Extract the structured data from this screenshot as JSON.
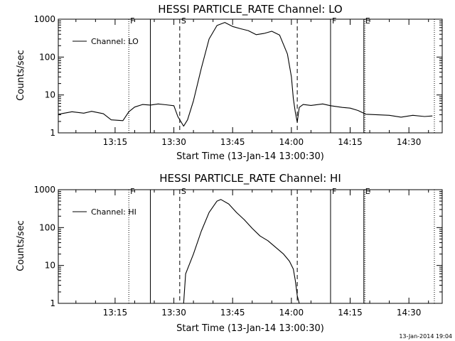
{
  "chart_data": [
    {
      "type": "line",
      "title": "HESSI PARTICLE_RATE Channel: LO",
      "xlabel": "Start Time (13-Jan-14 13:00:30)",
      "ylabel": "Counts/sec",
      "yscale": "log",
      "ylim": [
        1,
        1000
      ],
      "xlim": [
        "13:00:30",
        "14:38:30"
      ],
      "xticks": [
        "13:15",
        "13:30",
        "13:45",
        "14:00",
        "14:15",
        "14:30"
      ],
      "yticks": [
        "1",
        "10",
        "100",
        "1000"
      ],
      "legend": "top-left",
      "grid": false,
      "series": [
        {
          "name": "Channel: LO",
          "x": [
            "13:00:30",
            "13:04:00",
            "13:07:00",
            "13:09:00",
            "13:12:00",
            "13:14:00",
            "13:17:00",
            "13:18:30",
            "13:20:00",
            "13:22:00",
            "13:24:00",
            "13:26:00",
            "13:28:00",
            "13:30:00",
            "13:31:00",
            "13:32:30",
            "13:33:30",
            "13:35:00",
            "13:37:00",
            "13:39:00",
            "13:41:00",
            "13:43:00",
            "13:45:00",
            "13:47:00",
            "13:49:00",
            "13:51:00",
            "13:53:00",
            "13:55:00",
            "13:57:00",
            "13:59:00",
            "14:00:00",
            "14:00:30",
            "14:01:00",
            "14:01:30",
            "14:02:00",
            "14:03:00",
            "14:05:00",
            "14:08:00",
            "14:10:00",
            "14:13:00",
            "14:15:00",
            "14:17:00",
            "14:19:00",
            "14:22:00",
            "14:25:00",
            "14:28:00",
            "14:31:00",
            "14:34:00",
            "14:36:00"
          ],
          "values": [
            3.1,
            3.6,
            3.3,
            3.7,
            3.2,
            2.2,
            2.1,
            3.6,
            4.8,
            5.6,
            5.4,
            5.8,
            5.5,
            5.2,
            2.7,
            1.5,
            2.2,
            7,
            50,
            300,
            680,
            820,
            640,
            560,
            500,
            390,
            420,
            480,
            380,
            120,
            30,
            8,
            3.5,
            1.9,
            4.7,
            5.6,
            5.3,
            5.8,
            5.2,
            4.7,
            4.5,
            3.9,
            3.1,
            3.0,
            2.9,
            2.6,
            2.9,
            2.7,
            2.8
          ],
          "color": "#000000"
        }
      ],
      "markers": [
        {
          "label": "F",
          "x": "13:18:30",
          "style": "dotted"
        },
        {
          "label": "",
          "x": "13:24:00",
          "style": "solid"
        },
        {
          "label": "S",
          "x": "13:31:30",
          "style": "dashed"
        },
        {
          "label": "",
          "x": "14:01:30",
          "style": "dashed"
        },
        {
          "label": "F",
          "x": "14:10:00",
          "style": "solid"
        },
        {
          "label": "E",
          "x": "14:18:30",
          "style": "solid"
        },
        {
          "label": "",
          "x": "14:18:45",
          "style": "dotted"
        },
        {
          "label": "",
          "x": "14:36:30",
          "style": "dotted"
        }
      ]
    },
    {
      "type": "line",
      "title": "HESSI PARTICLE_RATE Channel: HI",
      "xlabel": "Start Time (13-Jan-14 13:00:30)",
      "ylabel": "Counts/sec",
      "yscale": "log",
      "ylim": [
        1,
        1000
      ],
      "xlim": [
        "13:00:30",
        "14:38:30"
      ],
      "xticks": [
        "13:15",
        "13:30",
        "13:45",
        "14:00",
        "14:15",
        "14:30"
      ],
      "yticks": [
        "1",
        "10",
        "100",
        "1000"
      ],
      "legend": "top-left",
      "grid": false,
      "series": [
        {
          "name": "Channel: HI",
          "x": [
            "13:32:30",
            "13:33:00",
            "13:35:00",
            "13:37:00",
            "13:39:00",
            "13:41:00",
            "13:42:00",
            "13:44:00",
            "13:46:00",
            "13:48:00",
            "13:50:00",
            "13:52:00",
            "13:54:00",
            "13:56:00",
            "13:58:00",
            "13:59:30",
            "14:00:30",
            "14:01:00",
            "14:01:30",
            "14:02:00"
          ],
          "values": [
            1,
            6,
            20,
            80,
            250,
            500,
            550,
            420,
            250,
            160,
            95,
            60,
            45,
            30,
            20,
            13,
            8,
            4,
            1.6,
            1
          ],
          "color": "#000000"
        }
      ],
      "markers": [
        {
          "label": "F",
          "x": "13:18:30",
          "style": "dotted"
        },
        {
          "label": "",
          "x": "13:24:00",
          "style": "solid"
        },
        {
          "label": "S",
          "x": "13:31:30",
          "style": "dashed"
        },
        {
          "label": "",
          "x": "14:01:30",
          "style": "dashed"
        },
        {
          "label": "F",
          "x": "14:10:00",
          "style": "solid"
        },
        {
          "label": "E",
          "x": "14:18:30",
          "style": "solid"
        },
        {
          "label": "",
          "x": "14:18:45",
          "style": "dotted"
        },
        {
          "label": "",
          "x": "14:36:30",
          "style": "dotted"
        }
      ]
    }
  ],
  "footer": {
    "timestamp": "13-Jan-2014 19:04"
  }
}
